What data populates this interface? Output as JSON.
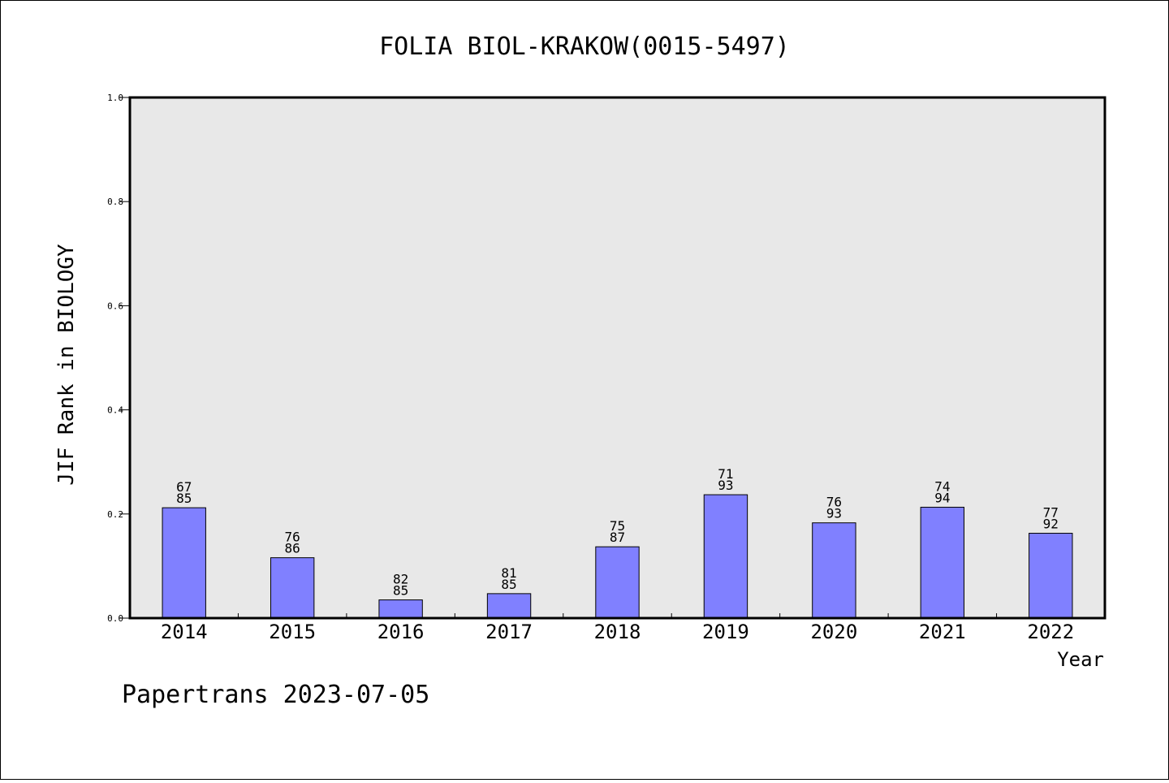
{
  "chart_data": {
    "type": "bar",
    "title": "FOLIA BIOL-KRAKOW(0015-5497)",
    "xlabel": "Year",
    "ylabel": "JIF Rank in BIOLOGY",
    "ylim": [
      0.0,
      1.0
    ],
    "yticks": [
      "0.0",
      "0.2",
      "0.4",
      "0.6",
      "0.8",
      "1.0"
    ],
    "categories": [
      "2014",
      "2015",
      "2016",
      "2017",
      "2018",
      "2019",
      "2020",
      "2021",
      "2022"
    ],
    "values": [
      0.212,
      0.116,
      0.035,
      0.047,
      0.137,
      0.237,
      0.183,
      0.213,
      0.163
    ],
    "labels": [
      {
        "rank": "67",
        "total": "85"
      },
      {
        "rank": "76",
        "total": "86"
      },
      {
        "rank": "82",
        "total": "85"
      },
      {
        "rank": "81",
        "total": "85"
      },
      {
        "rank": "75",
        "total": "87"
      },
      {
        "rank": "71",
        "total": "93"
      },
      {
        "rank": "76",
        "total": "93"
      },
      {
        "rank": "74",
        "total": "94"
      },
      {
        "rank": "77",
        "total": "92"
      }
    ],
    "bar_color": "#8080ff",
    "plot_background": "#e8e8e8",
    "grid": false,
    "legend": "none"
  },
  "footer": {
    "text": "Papertrans 2023-07-05"
  }
}
